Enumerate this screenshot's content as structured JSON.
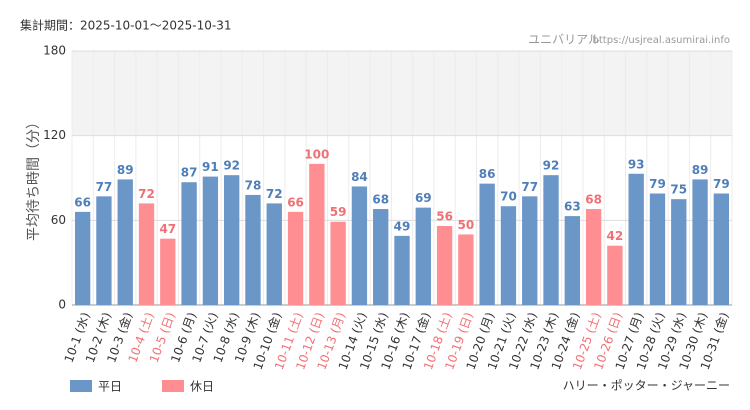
{
  "chart_data": {
    "type": "bar",
    "subtitle": "集計期間：2025-10-01～2025-10-31",
    "source": "ユニバリアル",
    "source_url": "https://usjreal.asumirai.info",
    "y_label": "平均待ち時間（分）",
    "title": "ハリー・ポッター・ジャーニー",
    "categories": [
      "10-1 (水)",
      "10-2 (木)",
      "10-3 (金)",
      "10-4 (土)",
      "10-5 (日)",
      "10-6 (月)",
      "10-7 (火)",
      "10-8 (水)",
      "10-9 (木)",
      "10-10 (金)",
      "10-11 (土)",
      "10-12 (日)",
      "10-13 (月)",
      "10-14 (火)",
      "10-15 (水)",
      "10-16 (木)",
      "10-17 (金)",
      "10-18 (土)",
      "10-19 (日)",
      "10-20 (月)",
      "10-21 (火)",
      "10-22 (水)",
      "10-23 (木)",
      "10-24 (金)",
      "10-25 (土)",
      "10-26 (日)",
      "10-27 (月)",
      "10-28 (火)",
      "10-29 (水)",
      "10-30 (木)",
      "10-31 (金)"
    ],
    "series": [
      {
        "name": "平日",
        "color": "#6a96c8",
        "label_color": "#4f7fb8",
        "values": [
          66,
          77,
          89,
          null,
          null,
          87,
          91,
          92,
          78,
          72,
          null,
          null,
          null,
          84,
          68,
          49,
          69,
          null,
          null,
          86,
          70,
          77,
          92,
          63,
          null,
          null,
          93,
          79,
          75,
          89,
          79
        ]
      },
      {
        "name": "休日",
        "color": "#ff8e93",
        "label_color": "#f07075",
        "values": [
          null,
          null,
          null,
          72,
          47,
          null,
          null,
          null,
          null,
          null,
          66,
          100,
          59,
          null,
          null,
          null,
          null,
          56,
          50,
          null,
          null,
          null,
          null,
          null,
          68,
          42,
          null,
          null,
          null,
          null,
          null
        ]
      }
    ],
    "ylim": [
      0,
      180
    ],
    "yticks": [
      0,
      60,
      120,
      180
    ],
    "grid": true
  }
}
